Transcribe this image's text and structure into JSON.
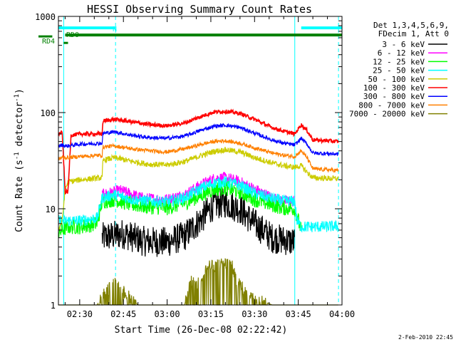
{
  "chart_data": {
    "type": "line",
    "title": "HESSI Observing Summary Count Rates",
    "xlabel": "Start Time (26-Dec-08 02:22:42)",
    "ylabel_main": "Count Rate (s",
    "ylabel_sup1": "-1",
    "ylabel_mid": " detector",
    "ylabel_sup2": "-1",
    "ylabel_end": ")",
    "x_unit": "minutes",
    "xlim": [
      22.7,
      120
    ],
    "ylim": [
      1,
      1000
    ],
    "y_scale": "log",
    "x_ticks": [
      {
        "value": 30,
        "label": "02:30"
      },
      {
        "value": 45,
        "label": "02:45"
      },
      {
        "value": 60,
        "label": "03:00"
      },
      {
        "value": 75,
        "label": "03:15"
      },
      {
        "value": 90,
        "label": "03:30"
      },
      {
        "value": 105,
        "label": "03:45"
      },
      {
        "value": 120,
        "label": "04:00"
      }
    ],
    "y_ticks": [
      {
        "value": 1,
        "label": "1"
      },
      {
        "value": 10,
        "label": "10"
      },
      {
        "value": 100,
        "label": "100"
      },
      {
        "value": 1000,
        "label": "1000"
      }
    ],
    "legend_header": [
      "Det 1,3,4,5,6,9,",
      "FDecim 1, Att 0"
    ],
    "legend_placement": "outside-right",
    "footer_date": "2-Feb-2010 22:45",
    "flags": {
      "N_label": "N",
      "RD0_label": "RD0",
      "RD4_label": "RD4",
      "night_bars": [
        [
          22.7,
          42.3
        ],
        [
          106.0,
          120
        ]
      ],
      "night_level": 760,
      "rd0_level": 640,
      "rd0_short": [
        22.7,
        25.0
      ],
      "rd0_long": [
        25.0,
        120
      ],
      "rd4_level": 530,
      "rd4_span": [
        24.5,
        26.0
      ],
      "gap_lines": [
        24.5,
        42.3,
        103.8,
        118.8
      ],
      "solid_lines": [
        24.5,
        103.8
      ],
      "dashed_lines": [
        42.3,
        118.8
      ]
    },
    "series": [
      {
        "name": "3 - 6 keV",
        "color": "#000000",
        "points": [
          [
            37.7,
            5.0
          ],
          [
            45,
            5.5
          ],
          [
            52,
            4.6
          ],
          [
            60,
            4.5
          ],
          [
            66,
            5.2
          ],
          [
            72,
            8.0
          ],
          [
            76,
            11
          ],
          [
            80,
            11.5
          ],
          [
            85,
            10
          ],
          [
            90,
            7
          ],
          [
            96,
            5
          ],
          [
            103.8,
            4.5
          ]
        ]
      },
      {
        "name": "6 - 12 keV",
        "color": "#ff00ff",
        "points": [
          [
            37.7,
            14
          ],
          [
            44,
            15.5
          ],
          [
            52,
            12.8
          ],
          [
            60,
            12.5
          ],
          [
            66,
            14
          ],
          [
            72,
            18
          ],
          [
            76,
            20.5
          ],
          [
            80,
            21
          ],
          [
            85,
            19
          ],
          [
            90,
            16
          ],
          [
            96,
            13
          ],
          [
            100,
            12
          ],
          [
            103.8,
            12
          ]
        ]
      },
      {
        "name": "12 - 25 keV",
        "color": "#00ff00",
        "points": [
          [
            22.7,
            5.5
          ],
          [
            24,
            6.0
          ],
          [
            26,
            6.5
          ],
          [
            30,
            6.5
          ],
          [
            36,
            7.0
          ],
          [
            37.7,
            12
          ],
          [
            42,
            12.5
          ],
          [
            48,
            11
          ],
          [
            54,
            10.5
          ],
          [
            60,
            10.2
          ],
          [
            66,
            11.5
          ],
          [
            72,
            14
          ],
          [
            76,
            16
          ],
          [
            80,
            16.5
          ],
          [
            85,
            15
          ],
          [
            90,
            12.5
          ],
          [
            96,
            11
          ],
          [
            100,
            10.2
          ],
          [
            103.8,
            10
          ],
          [
            106,
            6.0
          ]
        ]
      },
      {
        "name": "25 - 50 keV",
        "color": "#00ffff",
        "points": [
          [
            22.7,
            7.5
          ],
          [
            26,
            7.5
          ],
          [
            30,
            7.5
          ],
          [
            36,
            8.0
          ],
          [
            37.7,
            13
          ],
          [
            42,
            14
          ],
          [
            48,
            12.5
          ],
          [
            54,
            12
          ],
          [
            60,
            11.8
          ],
          [
            66,
            13
          ],
          [
            72,
            16.5
          ],
          [
            76,
            18.5
          ],
          [
            80,
            19
          ],
          [
            85,
            17.5
          ],
          [
            90,
            14.5
          ],
          [
            96,
            12.8
          ],
          [
            100,
            12
          ],
          [
            103.8,
            12
          ],
          [
            104.5,
            7.5
          ],
          [
            106,
            6.5
          ],
          [
            114,
            6.5
          ],
          [
            118.8,
            6.6
          ]
        ]
      },
      {
        "name": "50 - 100 keV",
        "color": "#cccc00",
        "points": [
          [
            22.7,
            6.0
          ],
          [
            24,
            7.5
          ],
          [
            25,
            16
          ],
          [
            26,
            19
          ],
          [
            30,
            20
          ],
          [
            37.7,
            21
          ],
          [
            38,
            32
          ],
          [
            42,
            34
          ],
          [
            48,
            31
          ],
          [
            54,
            29
          ],
          [
            60,
            28.5
          ],
          [
            66,
            31
          ],
          [
            72,
            36
          ],
          [
            76,
            39.5
          ],
          [
            80,
            41
          ],
          [
            85,
            39
          ],
          [
            90,
            34
          ],
          [
            96,
            30
          ],
          [
            100,
            28
          ],
          [
            103.8,
            27
          ],
          [
            106,
            28
          ],
          [
            108,
            24
          ],
          [
            110,
            21
          ],
          [
            118.8,
            20.5
          ]
        ]
      },
      {
        "name": "100 - 300 keV",
        "color": "#ff0000",
        "points": [
          [
            22.7,
            60
          ],
          [
            24,
            62
          ],
          [
            25,
            15
          ],
          [
            26,
            15
          ],
          [
            27,
            58
          ],
          [
            30,
            60
          ],
          [
            37.7,
            60
          ],
          [
            38,
            82
          ],
          [
            42,
            85
          ],
          [
            48,
            80
          ],
          [
            54,
            75
          ],
          [
            60,
            73
          ],
          [
            66,
            78
          ],
          [
            72,
            92
          ],
          [
            76,
            101
          ],
          [
            80,
            103
          ],
          [
            85,
            98
          ],
          [
            90,
            85
          ],
          [
            96,
            70
          ],
          [
            100,
            64
          ],
          [
            103.8,
            60
          ],
          [
            106,
            75
          ],
          [
            108,
            65
          ],
          [
            110,
            52
          ],
          [
            118.8,
            50
          ]
        ]
      },
      {
        "name": "300 - 800 keV",
        "color": "#0000ff",
        "points": [
          [
            22.7,
            45
          ],
          [
            24,
            46
          ],
          [
            25,
            45
          ],
          [
            26,
            45
          ],
          [
            30,
            47
          ],
          [
            37.7,
            48
          ],
          [
            38,
            61
          ],
          [
            42,
            63
          ],
          [
            48,
            58
          ],
          [
            54,
            55
          ],
          [
            60,
            54
          ],
          [
            66,
            57
          ],
          [
            72,
            66
          ],
          [
            76,
            72
          ],
          [
            80,
            74
          ],
          [
            85,
            70
          ],
          [
            90,
            61
          ],
          [
            96,
            52
          ],
          [
            100,
            48
          ],
          [
            103.8,
            46
          ],
          [
            106,
            54
          ],
          [
            108,
            47
          ],
          [
            110,
            38
          ],
          [
            118.8,
            37
          ]
        ]
      },
      {
        "name": "800 - 7000 keV",
        "color": "#ff8000",
        "points": [
          [
            22.7,
            33
          ],
          [
            24,
            34
          ],
          [
            25,
            34
          ],
          [
            26,
            34
          ],
          [
            30,
            35
          ],
          [
            37.7,
            36
          ],
          [
            38,
            44
          ],
          [
            42,
            45
          ],
          [
            48,
            42
          ],
          [
            54,
            40
          ],
          [
            60,
            39
          ],
          [
            66,
            42
          ],
          [
            72,
            47
          ],
          [
            76,
            50
          ],
          [
            80,
            51
          ],
          [
            85,
            48
          ],
          [
            90,
            43
          ],
          [
            96,
            38
          ],
          [
            100,
            36
          ],
          [
            103.8,
            35
          ],
          [
            106,
            40
          ],
          [
            108,
            34
          ],
          [
            110,
            26
          ],
          [
            118.8,
            25
          ]
        ]
      },
      {
        "name": "7000 - 20000 keV",
        "color": "#808000",
        "points": [
          [
            22.7,
            1
          ],
          [
            26,
            1
          ],
          [
            28,
            1
          ],
          [
            30,
            1
          ],
          [
            36,
            1
          ],
          [
            38,
            1.3
          ],
          [
            42,
            1.7
          ],
          [
            45,
            1.4
          ],
          [
            50,
            1
          ],
          [
            56,
            1
          ],
          [
            64,
            1
          ],
          [
            66,
            1
          ],
          [
            68,
            1.8
          ],
          [
            70,
            1.6
          ],
          [
            74,
            2.5
          ],
          [
            78,
            2.7
          ],
          [
            82,
            2.7
          ],
          [
            84,
            1.8
          ],
          [
            86,
            1.5
          ],
          [
            90,
            1.2
          ],
          [
            96,
            1
          ],
          [
            100,
            1
          ],
          [
            103.8,
            1
          ],
          [
            118.8,
            1
          ]
        ]
      }
    ]
  }
}
